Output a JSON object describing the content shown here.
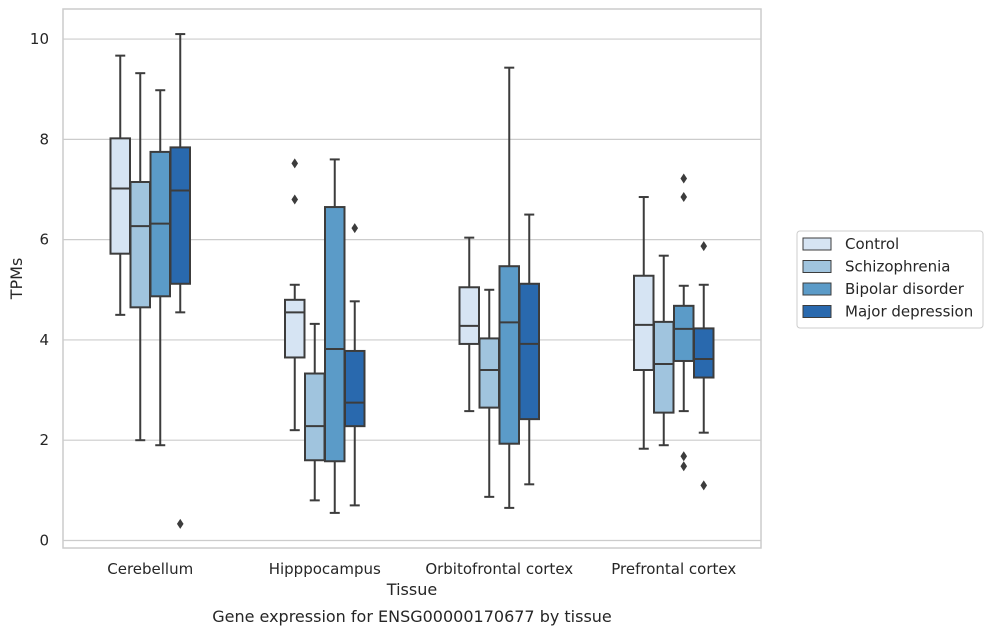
{
  "chart_data": {
    "type": "box",
    "caption": "Gene expression for ENSG00000170677 by tissue",
    "xlabel": "Tissue",
    "ylabel": "TPMs",
    "ylim": [
      -0.15,
      10.6
    ],
    "yticks": [
      0,
      2,
      4,
      6,
      8,
      10
    ],
    "grid": "horizontal",
    "legend_position": "right",
    "categories": [
      "Cerebellum",
      "Hipppocampus",
      "Orbitofrontal cortex",
      "Prefrontal cortex"
    ],
    "series": [
      {
        "name": "Control",
        "color": "#d6e4f3",
        "boxes": [
          {
            "whislo": 4.5,
            "q1": 5.72,
            "med": 7.02,
            "q3": 8.02,
            "whishi": 9.67,
            "fliers": []
          },
          {
            "whislo": 2.2,
            "q1": 3.65,
            "med": 4.55,
            "q3": 4.8,
            "whishi": 5.1,
            "fliers": [
              6.8,
              7.52
            ]
          },
          {
            "whislo": 2.58,
            "q1": 3.92,
            "med": 4.28,
            "q3": 5.05,
            "whishi": 6.04,
            "fliers": []
          },
          {
            "whislo": 1.83,
            "q1": 3.4,
            "med": 4.3,
            "q3": 5.28,
            "whishi": 6.85,
            "fliers": []
          }
        ]
      },
      {
        "name": "Schizophrenia",
        "color": "#a0c4de",
        "boxes": [
          {
            "whislo": 2.0,
            "q1": 4.65,
            "med": 6.27,
            "q3": 7.15,
            "whishi": 9.32,
            "fliers": []
          },
          {
            "whislo": 0.8,
            "q1": 1.6,
            "med": 2.28,
            "q3": 3.33,
            "whishi": 4.32,
            "fliers": []
          },
          {
            "whislo": 0.87,
            "q1": 2.65,
            "med": 3.4,
            "q3": 4.03,
            "whishi": 5.0,
            "fliers": []
          },
          {
            "whislo": 1.9,
            "q1": 2.55,
            "med": 3.52,
            "q3": 4.36,
            "whishi": 5.68,
            "fliers": []
          }
        ]
      },
      {
        "name": "Bipolar disorder",
        "color": "#5b9bc8",
        "boxes": [
          {
            "whislo": 1.9,
            "q1": 4.87,
            "med": 6.32,
            "q3": 7.75,
            "whishi": 8.98,
            "fliers": []
          },
          {
            "whislo": 0.55,
            "q1": 1.58,
            "med": 3.82,
            "q3": 6.65,
            "whishi": 7.6,
            "fliers": []
          },
          {
            "whislo": 0.65,
            "q1": 1.93,
            "med": 4.35,
            "q3": 5.47,
            "whishi": 9.43,
            "fliers": []
          },
          {
            "whislo": 2.58,
            "q1": 3.58,
            "med": 4.22,
            "q3": 4.68,
            "whishi": 5.08,
            "fliers": [
              1.48,
              1.68,
              6.85,
              7.22
            ]
          }
        ]
      },
      {
        "name": "Major depression",
        "color": "#2969ae",
        "boxes": [
          {
            "whislo": 4.55,
            "q1": 5.12,
            "med": 6.98,
            "q3": 7.84,
            "whishi": 10.1,
            "fliers": [
              0.33
            ]
          },
          {
            "whislo": 0.7,
            "q1": 2.28,
            "med": 2.75,
            "q3": 3.78,
            "whishi": 4.77,
            "fliers": [
              6.23
            ]
          },
          {
            "whislo": 1.12,
            "q1": 2.42,
            "med": 3.92,
            "q3": 5.12,
            "whishi": 6.5,
            "fliers": []
          },
          {
            "whislo": 2.15,
            "q1": 3.25,
            "med": 3.62,
            "q3": 4.23,
            "whishi": 5.1,
            "fliers": [
              1.1,
              5.87
            ]
          }
        ]
      }
    ]
  }
}
